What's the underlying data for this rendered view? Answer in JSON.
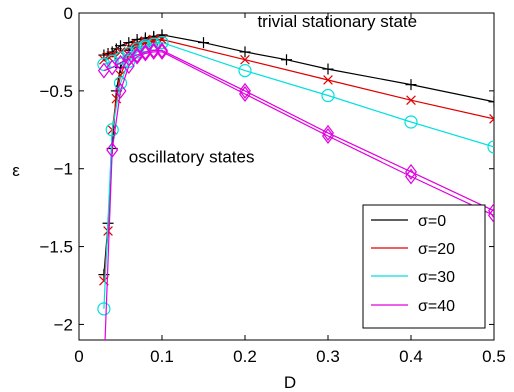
{
  "chart_data": {
    "type": "line",
    "xlabel": "D",
    "ylabel": "ε",
    "xlim": [
      0,
      0.5
    ],
    "ylim": [
      -2.1,
      0
    ],
    "xticks": [
      0,
      0.1,
      0.2,
      0.3,
      0.4,
      0.5
    ],
    "yticks": [
      0,
      -0.5,
      -1,
      -1.5,
      -2
    ],
    "xtick_labels": [
      "0",
      "0.1",
      "0.2",
      "0.3",
      "0.4",
      "0.5"
    ],
    "ytick_labels": [
      "0",
      "−0.5",
      "−1",
      "−1.5",
      "−2"
    ],
    "grid": false,
    "legend_position": "bottom-right",
    "annotations": [
      {
        "text": "trivial stationary state",
        "x": 0.215,
        "y": -0.09
      },
      {
        "text": "oscillatory states",
        "x": 0.06,
        "y": -0.96
      }
    ],
    "series": [
      {
        "name": "σ=0",
        "color": "#000000",
        "marker": "plus",
        "upper": {
          "x": [
            0.03,
            0.035,
            0.04,
            0.045,
            0.05,
            0.06,
            0.07,
            0.08,
            0.09,
            0.1,
            0.15,
            0.2,
            0.25,
            0.3,
            0.4,
            0.5
          ],
          "y": [
            -0.27,
            -0.26,
            -0.25,
            -0.23,
            -0.21,
            -0.19,
            -0.17,
            -0.16,
            -0.15,
            -0.14,
            -0.19,
            -0.25,
            -0.3,
            -0.36,
            -0.46,
            -0.57
          ]
        },
        "lower": {
          "x": [
            0.03,
            0.035,
            0.04,
            0.045,
            0.05,
            0.06,
            0.07,
            0.08,
            0.09,
            0.1
          ],
          "y": [
            -1.68,
            -1.35,
            -0.87,
            -0.5,
            -0.35,
            -0.24,
            -0.19,
            -0.17,
            -0.155,
            -0.145
          ]
        }
      },
      {
        "name": "σ=20",
        "color": "#e00000",
        "marker": "x",
        "upper": {
          "x": [
            0.03,
            0.035,
            0.04,
            0.05,
            0.06,
            0.07,
            0.08,
            0.09,
            0.1,
            0.2,
            0.3,
            0.4,
            0.5
          ],
          "y": [
            -0.3,
            -0.28,
            -0.27,
            -0.25,
            -0.22,
            -0.2,
            -0.18,
            -0.17,
            -0.17,
            -0.3,
            -0.43,
            -0.56,
            -0.68
          ]
        },
        "lower": {
          "x": [
            0.03,
            0.035,
            0.04,
            0.045,
            0.05,
            0.06,
            0.07,
            0.08,
            0.09,
            0.1
          ],
          "y": [
            -1.72,
            -1.4,
            -0.75,
            -0.55,
            -0.4,
            -0.27,
            -0.21,
            -0.19,
            -0.18,
            -0.17
          ]
        }
      },
      {
        "name": "σ=30",
        "color": "#00e0e0",
        "marker": "circle",
        "upper": {
          "x": [
            0.03,
            0.04,
            0.05,
            0.06,
            0.07,
            0.08,
            0.09,
            0.1,
            0.2,
            0.3,
            0.4,
            0.5
          ],
          "y": [
            -0.33,
            -0.31,
            -0.29,
            -0.26,
            -0.23,
            -0.21,
            -0.2,
            -0.19,
            -0.37,
            -0.53,
            -0.7,
            -0.86
          ]
        },
        "lower": {
          "x": [
            0.03,
            0.04,
            0.05,
            0.06,
            0.07,
            0.08,
            0.09,
            0.1
          ],
          "y": [
            -1.9,
            -0.75,
            -0.45,
            -0.31,
            -0.25,
            -0.22,
            -0.2,
            -0.19
          ]
        }
      },
      {
        "name": "σ=40",
        "color": "#e000e0",
        "marker": "diamond",
        "upper": {
          "x": [
            0.03,
            0.04,
            0.05,
            0.06,
            0.07,
            0.08,
            0.09,
            0.1,
            0.2,
            0.3,
            0.4,
            0.5
          ],
          "y": [
            -0.37,
            -0.35,
            -0.32,
            -0.29,
            -0.27,
            -0.25,
            -0.24,
            -0.24,
            -0.5,
            -0.77,
            -1.02,
            -1.27
          ]
        },
        "lower": {
          "x": [
            0.03,
            0.04,
            0.05,
            0.06,
            0.07,
            0.08,
            0.09,
            0.1,
            0.2,
            0.3,
            0.4,
            0.5
          ],
          "y": [
            -2.3,
            -0.88,
            -0.5,
            -0.34,
            -0.28,
            -0.26,
            -0.25,
            -0.25,
            -0.52,
            -0.79,
            -1.05,
            -1.3
          ]
        }
      }
    ]
  }
}
